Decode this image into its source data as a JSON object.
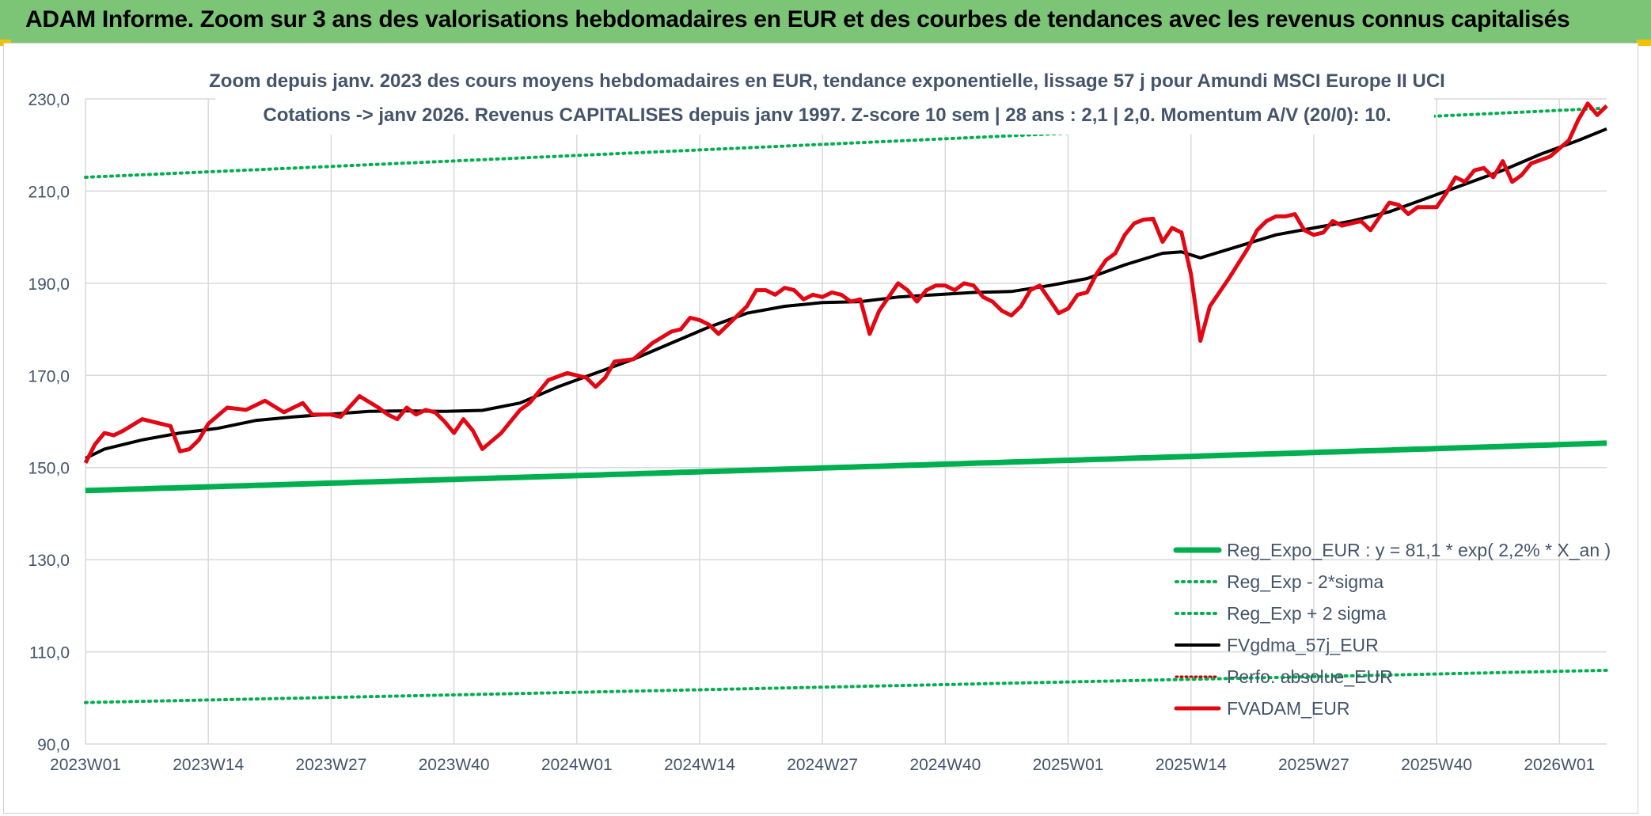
{
  "header": {
    "title": "ADAM Informe. Zoom sur 3 ans des valorisations hebdomadaires en EUR et des courbes de tendances avec les revenus connus capitalisés"
  },
  "colors": {
    "banner": "#7cc576",
    "reg_expo": "#00b050",
    "sigma": "#00b050",
    "gdma": "#000000",
    "perfo": "#c00000",
    "adam": "#e30613",
    "grid": "#d9d9d9",
    "text": "#44546a"
  },
  "chart_data": {
    "type": "line",
    "title": "Zoom depuis janv. 2023 des cours moyens hebdomadaires en EUR, tendance exponentielle, lissage 57 j pour Amundi MSCI Europe II UCI",
    "subtitle": "Cotations -> janv 2026. Revenus CAPITALISES depuis janv 1997. Z-score 10 sem | 28 ans : 2,1 | 2,0. Momentum A/V (20/0): 10.",
    "x_tick_labels": [
      "2023W01",
      "2023W14",
      "2023W27",
      "2023W40",
      "2024W01",
      "2024W14",
      "2024W27",
      "2024W40",
      "2025W01",
      "2025W14",
      "2025W27",
      "2025W40",
      "2026W01"
    ],
    "x_tick_index": [
      0,
      13,
      26,
      39,
      52,
      65,
      78,
      91,
      104,
      117,
      130,
      143,
      156
    ],
    "y_tick_labels": [
      "90,0",
      "110,0",
      "130,0",
      "150,0",
      "170,0",
      "190,0",
      "210,0",
      "230,0"
    ],
    "y_tick_values": [
      90,
      110,
      130,
      150,
      170,
      190,
      210,
      230
    ],
    "ylim": [
      90,
      230
    ],
    "n_weeks": 162,
    "legend": [
      {
        "key": "reg_expo",
        "label": "Reg_Expo_EUR : y = 81,1 * exp( 2,2% *  X_an )",
        "style": "thick"
      },
      {
        "key": "sigma_minus",
        "label": "Reg_Exp - 2*sigma",
        "style": "dotted"
      },
      {
        "key": "sigma_plus",
        "label": "Reg_Exp + 2 sigma",
        "style": "dotted"
      },
      {
        "key": "gdma",
        "label": "FVgdma_57j_EUR",
        "style": "solid"
      },
      {
        "key": "perfo",
        "label": "Perfo. absolue_EUR",
        "style": "dotted-red"
      },
      {
        "key": "adam",
        "label": "FVADAM_EUR",
        "style": "solid-red"
      }
    ],
    "series": {
      "reg_expo": {
        "start": 145.0,
        "end": 155.3
      },
      "sigma_plus": {
        "start": 213.0,
        "end": 228.0
      },
      "sigma_minus": {
        "start": 99.0,
        "end": 106.0
      },
      "gdma": [
        [
          0,
          152
        ],
        [
          2,
          154
        ],
        [
          6,
          156
        ],
        [
          10,
          157.5
        ],
        [
          14,
          158.5
        ],
        [
          18,
          160.2
        ],
        [
          22,
          161
        ],
        [
          26,
          161.6
        ],
        [
          30,
          162.2
        ],
        [
          34,
          162.3
        ],
        [
          38,
          162.2
        ],
        [
          42,
          162.4
        ],
        [
          46,
          164
        ],
        [
          50,
          167.5
        ],
        [
          54,
          170.5
        ],
        [
          58,
          173.5
        ],
        [
          62,
          177
        ],
        [
          66,
          180.5
        ],
        [
          70,
          183.5
        ],
        [
          74,
          185
        ],
        [
          78,
          185.8
        ],
        [
          82,
          186
        ],
        [
          86,
          187
        ],
        [
          90,
          187.5
        ],
        [
          94,
          188
        ],
        [
          98,
          188.2
        ],
        [
          102,
          189.5
        ],
        [
          106,
          191
        ],
        [
          110,
          194
        ],
        [
          114,
          196.5
        ],
        [
          116,
          196.8
        ],
        [
          118,
          195.5
        ],
        [
          122,
          198
        ],
        [
          126,
          200.5
        ],
        [
          130,
          202
        ],
        [
          134,
          203.5
        ],
        [
          138,
          205.5
        ],
        [
          142,
          208.5
        ],
        [
          146,
          211.5
        ],
        [
          150,
          214.5
        ],
        [
          154,
          218
        ],
        [
          158,
          221
        ],
        [
          161,
          223.5
        ]
      ],
      "adam": [
        [
          0,
          151
        ],
        [
          1,
          155
        ],
        [
          2,
          157.5
        ],
        [
          3,
          157
        ],
        [
          4,
          158
        ],
        [
          6,
          160.5
        ],
        [
          8,
          159.5
        ],
        [
          9,
          159
        ],
        [
          10,
          153.5
        ],
        [
          11,
          154
        ],
        [
          12,
          156
        ],
        [
          13,
          159.5
        ],
        [
          15,
          163
        ],
        [
          17,
          162.5
        ],
        [
          19,
          164.5
        ],
        [
          21,
          162
        ],
        [
          23,
          164
        ],
        [
          24,
          161.5
        ],
        [
          26,
          161.5
        ],
        [
          27,
          161
        ],
        [
          29,
          165.5
        ],
        [
          31,
          163
        ],
        [
          32,
          161.5
        ],
        [
          33,
          160.5
        ],
        [
          34,
          163
        ],
        [
          35,
          161.5
        ],
        [
          36,
          162.5
        ],
        [
          37,
          162
        ],
        [
          38,
          160
        ],
        [
          39,
          157.5
        ],
        [
          40,
          160.5
        ],
        [
          41,
          158
        ],
        [
          42,
          154
        ],
        [
          44,
          157.5
        ],
        [
          46,
          162.5
        ],
        [
          47,
          164
        ],
        [
          49,
          169
        ],
        [
          51,
          170.5
        ],
        [
          53,
          169.5
        ],
        [
          54,
          167.5
        ],
        [
          55,
          169.5
        ],
        [
          56,
          173
        ],
        [
          58,
          173.5
        ],
        [
          60,
          177
        ],
        [
          62,
          179.5
        ],
        [
          63,
          180
        ],
        [
          64,
          182.5
        ],
        [
          65,
          182
        ],
        [
          66,
          181
        ],
        [
          67,
          179
        ],
        [
          68,
          181
        ],
        [
          70,
          185
        ],
        [
          71,
          188.5
        ],
        [
          72,
          188.5
        ],
        [
          73,
          187.5
        ],
        [
          74,
          189
        ],
        [
          75,
          188.5
        ],
        [
          76,
          186.5
        ],
        [
          77,
          187.5
        ],
        [
          78,
          187
        ],
        [
          79,
          188
        ],
        [
          80,
          187.5
        ],
        [
          81,
          186
        ],
        [
          82,
          186.5
        ],
        [
          83,
          179
        ],
        [
          84,
          184
        ],
        [
          86,
          190
        ],
        [
          87,
          188.5
        ],
        [
          88,
          186
        ],
        [
          89,
          188.5
        ],
        [
          90,
          189.5
        ],
        [
          91,
          189.5
        ],
        [
          92,
          188.5
        ],
        [
          93,
          190
        ],
        [
          94,
          189.5
        ],
        [
          95,
          187
        ],
        [
          96,
          186
        ],
        [
          97,
          184
        ],
        [
          98,
          183
        ],
        [
          99,
          185
        ],
        [
          100,
          188.5
        ],
        [
          101,
          189.5
        ],
        [
          102,
          186.5
        ],
        [
          103,
          183.5
        ],
        [
          104,
          184.5
        ],
        [
          105,
          187.5
        ],
        [
          106,
          188
        ],
        [
          107,
          192
        ],
        [
          108,
          195
        ],
        [
          109,
          196.5
        ],
        [
          110,
          200.5
        ],
        [
          111,
          203
        ],
        [
          112,
          203.8
        ],
        [
          113,
          204
        ],
        [
          114,
          199
        ],
        [
          115,
          202
        ],
        [
          116,
          201
        ],
        [
          117,
          192
        ],
        [
          118,
          177.5
        ],
        [
          119,
          185
        ],
        [
          121,
          191
        ],
        [
          123,
          197.5
        ],
        [
          124,
          201.5
        ],
        [
          125,
          203.5
        ],
        [
          126,
          204.5
        ],
        [
          127,
          204.5
        ],
        [
          128,
          205
        ],
        [
          129,
          201.5
        ],
        [
          130,
          200.5
        ],
        [
          131,
          201
        ],
        [
          132,
          203.5
        ],
        [
          133,
          202.5
        ],
        [
          134,
          203
        ],
        [
          135,
          203.5
        ],
        [
          136,
          201.5
        ],
        [
          137,
          204.5
        ],
        [
          138,
          207.5
        ],
        [
          139,
          207
        ],
        [
          140,
          205
        ],
        [
          141,
          206.5
        ],
        [
          142,
          206.5
        ],
        [
          143,
          206.5
        ],
        [
          144,
          209.5
        ],
        [
          145,
          213
        ],
        [
          146,
          212
        ],
        [
          147,
          214.5
        ],
        [
          148,
          215
        ],
        [
          149,
          213
        ],
        [
          150,
          216.5
        ],
        [
          151,
          212
        ],
        [
          152,
          213.5
        ],
        [
          153,
          216
        ],
        [
          155,
          217.5
        ],
        [
          157,
          221
        ],
        [
          158,
          225.5
        ],
        [
          159,
          229
        ],
        [
          160,
          226.5
        ],
        [
          161,
          228.5
        ]
      ]
    }
  }
}
